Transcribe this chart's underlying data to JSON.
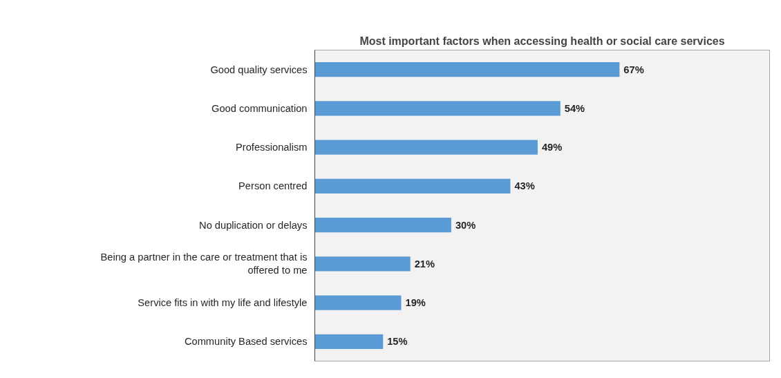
{
  "chart_data": {
    "type": "bar",
    "orientation": "horizontal",
    "title": "Most important factors when accessing health or social care services",
    "categories": [
      "Good quality services",
      "Good communication",
      "Professionalism",
      "Person centred",
      "No duplication or delays",
      "Being a partner in the care or treatment that is offered to me",
      "Service fits in with my life and lifestyle",
      "Community Based services"
    ],
    "values": [
      67,
      54,
      49,
      43,
      30,
      21,
      19,
      15
    ],
    "value_labels": [
      "67%",
      "54%",
      "49%",
      "43%",
      "30%",
      "21%",
      "19%",
      "15%"
    ],
    "color": "#5b9bd5",
    "xlim": [
      0,
      100
    ],
    "tick_labels": "y",
    "grid": false
  }
}
